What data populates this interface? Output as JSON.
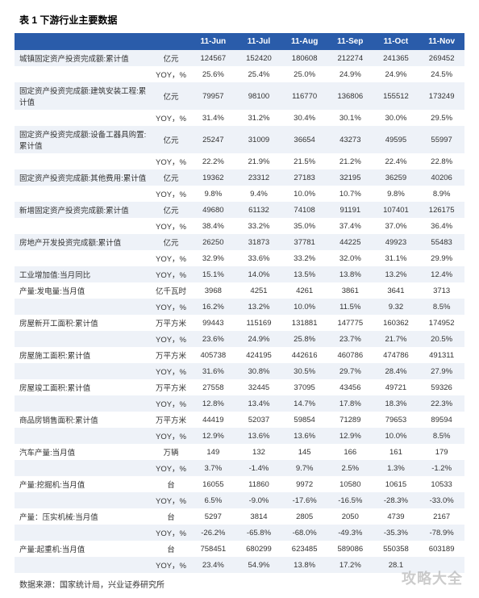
{
  "title": "表 1  下游行业主要数据",
  "columns": [
    "",
    "",
    "11-Jun",
    "11-Jul",
    "11-Aug",
    "11-Sep",
    "11-Oct",
    "11-Nov"
  ],
  "rows": [
    {
      "alt": true,
      "cells": [
        "城镇固定资产投资完成额:累计值",
        "亿元",
        "124567",
        "152420",
        "180608",
        "212274",
        "241365",
        "269452"
      ]
    },
    {
      "alt": false,
      "cells": [
        "",
        "YOY，%",
        "25.6%",
        "25.4%",
        "25.0%",
        "24.9%",
        "24.9%",
        "24.5%"
      ]
    },
    {
      "alt": true,
      "cells": [
        "固定资产投资完成额:建筑安装工程:累计值",
        "亿元",
        "79957",
        "98100",
        "116770",
        "136806",
        "155512",
        "173249"
      ]
    },
    {
      "alt": false,
      "cells": [
        "",
        "YOY，%",
        "31.4%",
        "31.2%",
        "30.4%",
        "30.1%",
        "30.0%",
        "29.5%"
      ]
    },
    {
      "alt": true,
      "cells": [
        "固定资产投资完成额:设备工器具购置:累计值",
        "亿元",
        "25247",
        "31009",
        "36654",
        "43273",
        "49595",
        "55997"
      ]
    },
    {
      "alt": false,
      "cells": [
        "",
        "YOY，%",
        "22.2%",
        "21.9%",
        "21.5%",
        "21.2%",
        "22.4%",
        "22.8%"
      ]
    },
    {
      "alt": true,
      "cells": [
        "固定资产投资完成额:其他费用:累计值",
        "亿元",
        "19362",
        "23312",
        "27183",
        "32195",
        "36259",
        "40206"
      ]
    },
    {
      "alt": false,
      "cells": [
        "",
        "YOY，%",
        "9.8%",
        "9.4%",
        "10.0%",
        "10.7%",
        "9.8%",
        "8.9%"
      ]
    },
    {
      "alt": true,
      "cells": [
        "新增固定资产投资完成额:累计值",
        "亿元",
        "49680",
        "61132",
        "74108",
        "91191",
        "107401",
        "126175"
      ]
    },
    {
      "alt": false,
      "cells": [
        "",
        "YOY，%",
        "38.4%",
        "33.2%",
        "35.0%",
        "37.4%",
        "37.0%",
        "36.4%"
      ]
    },
    {
      "alt": true,
      "cells": [
        "房地产开发投资完成额:累计值",
        "亿元",
        "26250",
        "31873",
        "37781",
        "44225",
        "49923",
        "55483"
      ]
    },
    {
      "alt": false,
      "cells": [
        "",
        "YOY，%",
        "32.9%",
        "33.6%",
        "33.2%",
        "32.0%",
        "31.1%",
        "29.9%"
      ]
    },
    {
      "alt": true,
      "cells": [
        "工业增加值:当月同比",
        "YOY，%",
        "15.1%",
        "14.0%",
        "13.5%",
        "13.8%",
        "13.2%",
        "12.4%"
      ]
    },
    {
      "alt": false,
      "cells": [
        "产量:发电量:当月值",
        "亿千瓦时",
        "3968",
        "4251",
        "4261",
        "3861",
        "3641",
        "3713"
      ]
    },
    {
      "alt": true,
      "cells": [
        "",
        "YOY，%",
        "16.2%",
        "13.2%",
        "10.0%",
        "11.5%",
        "9.32",
        "8.5%"
      ]
    },
    {
      "alt": false,
      "cells": [
        "房屋新开工面积:累计值",
        "万平方米",
        "99443",
        "115169",
        "131881",
        "147775",
        "160362",
        "174952"
      ]
    },
    {
      "alt": true,
      "cells": [
        "",
        "YOY，%",
        "23.6%",
        "24.9%",
        "25.8%",
        "23.7%",
        "21.7%",
        "20.5%"
      ]
    },
    {
      "alt": false,
      "cells": [
        "房屋施工面积:累计值",
        "万平方米",
        "405738",
        "424195",
        "442616",
        "460786",
        "474786",
        "491311"
      ]
    },
    {
      "alt": true,
      "cells": [
        "",
        "YOY，%",
        "31.6%",
        "30.8%",
        "30.5%",
        "29.7%",
        "28.4%",
        "27.9%"
      ]
    },
    {
      "alt": false,
      "cells": [
        "房屋竣工面积:累计值",
        "万平方米",
        "27558",
        "32445",
        "37095",
        "43456",
        "49721",
        "59326"
      ]
    },
    {
      "alt": true,
      "cells": [
        "",
        "YOY，%",
        "12.8%",
        "13.4%",
        "14.7%",
        "17.8%",
        "18.3%",
        "22.3%"
      ]
    },
    {
      "alt": false,
      "cells": [
        "商品房销售面积:累计值",
        "万平方米",
        "44419",
        "52037",
        "59854",
        "71289",
        "79653",
        "89594"
      ]
    },
    {
      "alt": true,
      "cells": [
        "",
        "YOY，%",
        "12.9%",
        "13.6%",
        "13.6%",
        "12.9%",
        "10.0%",
        "8.5%"
      ]
    },
    {
      "alt": false,
      "cells": [
        "汽车产量:当月值",
        "万辆",
        "149",
        "132",
        "145",
        "166",
        "161",
        "179"
      ]
    },
    {
      "alt": true,
      "cells": [
        "",
        "YOY，%",
        "3.7%",
        "-1.4%",
        "9.7%",
        "2.5%",
        "1.3%",
        "-1.2%"
      ]
    },
    {
      "alt": false,
      "cells": [
        "产量:挖掘机:当月值",
        "台",
        "16055",
        "11860",
        "9972",
        "10580",
        "10615",
        "10533"
      ]
    },
    {
      "alt": true,
      "cells": [
        "",
        "YOY，%",
        "6.5%",
        "-9.0%",
        "-17.6%",
        "-16.5%",
        "-28.3%",
        "-33.0%"
      ]
    },
    {
      "alt": false,
      "cells": [
        "产量：压实机械:当月值",
        "台",
        "5297",
        "3814",
        "2805",
        "2050",
        "4739",
        "2167"
      ]
    },
    {
      "alt": true,
      "cells": [
        "",
        "YOY，%",
        "-26.2%",
        "-65.8%",
        "-68.0%",
        "-49.3%",
        "-35.3%",
        "-78.9%"
      ]
    },
    {
      "alt": false,
      "cells": [
        "产量:起重机:当月值",
        "台",
        "758451",
        "680299",
        "623485",
        "589086",
        "550358",
        "603189"
      ]
    },
    {
      "alt": true,
      "cells": [
        "",
        "YOY，%",
        "23.4%",
        "54.9%",
        "13.8%",
        "17.2%",
        "28.1",
        ""
      ]
    }
  ],
  "footer": "数据来源：国家统计局，兴业证券研究所",
  "watermark": "攻略大全"
}
